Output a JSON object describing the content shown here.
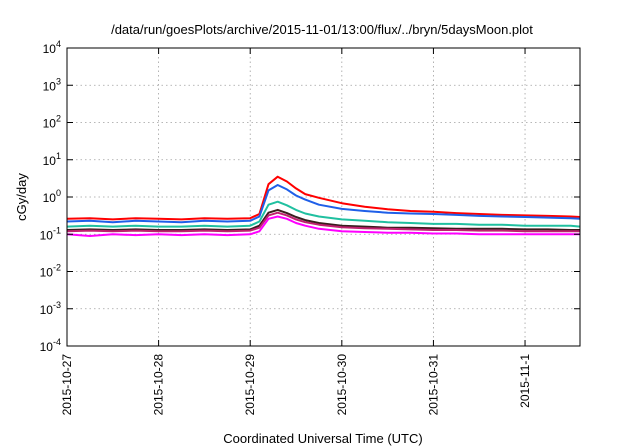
{
  "chart_data": {
    "type": "line",
    "title": "/data/run/goesPlots/archive/2015-11-01/13:00/flux/../bryn/5daysMoon.plot",
    "xlabel": "Coordinated Universal Time (UTC)",
    "ylabel": "cGy/day",
    "y_scale": "log",
    "ylim_exponents": [
      -4,
      4
    ],
    "y_tick_labels": [
      {
        "exp": "-4"
      },
      {
        "exp": "-3"
      },
      {
        "exp": "-2"
      },
      {
        "exp": "-1"
      },
      {
        "exp": "0"
      },
      {
        "exp": "1"
      },
      {
        "exp": "2"
      },
      {
        "exp": "3"
      },
      {
        "exp": "4"
      }
    ],
    "x_range_days": [
      0,
      5.6
    ],
    "x_ticks": [
      "2015-10-27",
      "2015-10-28",
      "2015-10-29",
      "2015-10-30",
      "2015-10-31",
      "2015-11-1"
    ],
    "grid": true,
    "legend": "none",
    "x": [
      0,
      0.25,
      0.5,
      0.75,
      1.0,
      1.25,
      1.5,
      1.75,
      2.0,
      2.1,
      2.2,
      2.3,
      2.4,
      2.5,
      2.6,
      2.75,
      3.0,
      3.25,
      3.5,
      3.75,
      4.0,
      4.25,
      4.5,
      4.75,
      5.0,
      5.25,
      5.5,
      5.6
    ],
    "series": [
      {
        "color": "#ff0000",
        "values": [
          0.26,
          0.27,
          0.25,
          0.27,
          0.26,
          0.25,
          0.27,
          0.26,
          0.27,
          0.35,
          2.2,
          3.5,
          2.6,
          1.7,
          1.2,
          0.95,
          0.68,
          0.55,
          0.47,
          0.42,
          0.4,
          0.37,
          0.35,
          0.33,
          0.32,
          0.31,
          0.3,
          0.29
        ]
      },
      {
        "color": "#1f5fe8",
        "values": [
          0.22,
          0.23,
          0.21,
          0.23,
          0.22,
          0.21,
          0.23,
          0.22,
          0.23,
          0.3,
          1.5,
          2.1,
          1.6,
          1.1,
          0.85,
          0.62,
          0.48,
          0.42,
          0.38,
          0.36,
          0.35,
          0.33,
          0.31,
          0.3,
          0.29,
          0.28,
          0.27,
          0.26
        ]
      },
      {
        "color": "#20c0a0",
        "values": [
          0.16,
          0.17,
          0.16,
          0.17,
          0.16,
          0.16,
          0.17,
          0.16,
          0.17,
          0.22,
          0.62,
          0.75,
          0.6,
          0.45,
          0.36,
          0.3,
          0.25,
          0.23,
          0.21,
          0.2,
          0.19,
          0.19,
          0.18,
          0.18,
          0.17,
          0.17,
          0.17,
          0.16
        ]
      },
      {
        "color": "#3a1d1d",
        "values": [
          0.13,
          0.135,
          0.13,
          0.135,
          0.13,
          0.13,
          0.135,
          0.13,
          0.135,
          0.17,
          0.38,
          0.45,
          0.37,
          0.29,
          0.24,
          0.2,
          0.17,
          0.16,
          0.15,
          0.15,
          0.145,
          0.14,
          0.14,
          0.14,
          0.135,
          0.135,
          0.13,
          0.13
        ]
      },
      {
        "color": "#c02070",
        "values": [
          0.12,
          0.125,
          0.12,
          0.125,
          0.12,
          0.12,
          0.125,
          0.12,
          0.125,
          0.15,
          0.32,
          0.38,
          0.32,
          0.25,
          0.21,
          0.18,
          0.155,
          0.145,
          0.14,
          0.135,
          0.13,
          0.13,
          0.125,
          0.125,
          0.12,
          0.12,
          0.12,
          0.12
        ]
      },
      {
        "color": "#ff00ff",
        "values": [
          0.1,
          0.09,
          0.1,
          0.095,
          0.1,
          0.095,
          0.1,
          0.095,
          0.1,
          0.12,
          0.26,
          0.3,
          0.26,
          0.2,
          0.17,
          0.14,
          0.12,
          0.115,
          0.11,
          0.11,
          0.105,
          0.105,
          0.1,
          0.1,
          0.1,
          0.1,
          0.1,
          0.1
        ]
      }
    ]
  }
}
